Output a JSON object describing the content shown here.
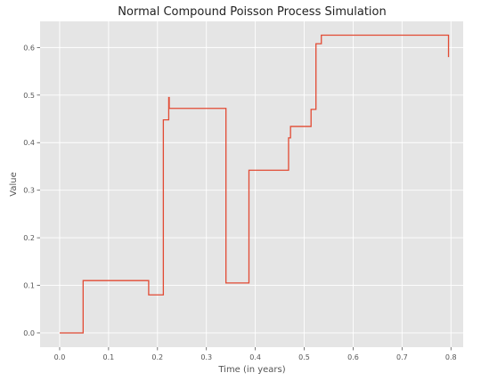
{
  "chart_data": {
    "type": "line",
    "style": "step",
    "title": "Normal Compound Poisson Process Simulation",
    "xlabel": "Time (in years)",
    "ylabel": "Value",
    "xlim": [
      -0.04,
      0.825
    ],
    "ylim": [
      -0.03,
      0.655
    ],
    "xticks": [
      "0.0",
      "0.1",
      "0.2",
      "0.3",
      "0.4",
      "0.5",
      "0.6",
      "0.7",
      "0.8"
    ],
    "yticks": [
      "0.0",
      "0.1",
      "0.2",
      "0.3",
      "0.4",
      "0.5",
      "0.6"
    ],
    "grid": true,
    "background": "#e5e5e5",
    "line_color": "#e24a33",
    "series": [
      {
        "x": [
          0.0,
          0.048,
          0.182,
          0.212,
          0.223,
          0.224,
          0.34,
          0.387,
          0.468,
          0.472,
          0.514,
          0.524,
          0.535,
          0.795,
          0.795
        ],
        "y": [
          0.0,
          0.11,
          0.08,
          0.448,
          0.495,
          0.472,
          0.105,
          0.342,
          0.41,
          0.434,
          0.47,
          0.608,
          0.626,
          0.626,
          0.58
        ]
      }
    ]
  }
}
